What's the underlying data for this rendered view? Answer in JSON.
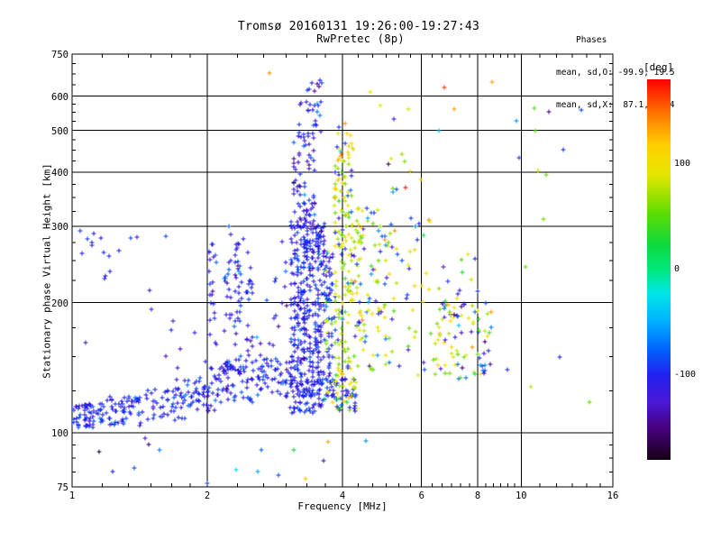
{
  "chart_data": {
    "type": "scatter",
    "title": "Tromsø 20160131 19:26:00-19:27:43",
    "subtitle": "RwPretec (8p)",
    "xlabel": "Frequency [MHz]",
    "ylabel": "Stationary phase Virtual Height [km]",
    "x_scale": "log",
    "x_range": [
      1,
      16
    ],
    "x_major_ticks": [
      1,
      2,
      4,
      6,
      8,
      10,
      16
    ],
    "x_tick_labels": [
      "1",
      "2",
      "4",
      "6",
      "8",
      "10",
      "16"
    ],
    "y_scale": "log",
    "y_range": [
      75,
      750
    ],
    "y_major_ticks": [
      75,
      100,
      200,
      300,
      400,
      500,
      600,
      750
    ],
    "y_tick_labels": [
      "75",
      "100",
      "200",
      "300",
      "400",
      "500",
      "600",
      "750"
    ],
    "grid_x": [
      2,
      4,
      6,
      8,
      10
    ],
    "grid_y": [
      100,
      200,
      300,
      400,
      500,
      600
    ],
    "grid_on": true,
    "legend_position": "right-colorbar",
    "annotation": {
      "line1": "Phases",
      "line2": "mean, sd,O: -99.9, 19.5",
      "line3": "mean, sd,X:  87.1, 22.4"
    },
    "colorbar": {
      "label": "[deg]",
      "range": [
        -180,
        180
      ],
      "ticks": [
        100,
        0,
        -100
      ],
      "tick_labels": [
        "100",
        "0",
        "-100"
      ],
      "stops": [
        [
          -180,
          "#160016"
        ],
        [
          -150,
          "#47007e"
        ],
        [
          -125,
          "#4a18d8"
        ],
        [
          -100,
          "#2121ee"
        ],
        [
          -75,
          "#0064ff"
        ],
        [
          -48,
          "#00b4ff"
        ],
        [
          -22,
          "#00e6e6"
        ],
        [
          0,
          "#00e87c"
        ],
        [
          25,
          "#0fd93a"
        ],
        [
          55,
          "#63dd00"
        ],
        [
          90,
          "#e6e600"
        ],
        [
          118,
          "#ffcf00"
        ],
        [
          148,
          "#ff7400"
        ],
        [
          180,
          "#ff0000"
        ]
      ]
    },
    "marker": "plus-cross",
    "marker_color_black": "#000000",
    "clusters": [
      {
        "f": [
          1.0,
          1.18
        ],
        "h": [
          103,
          117
        ],
        "n": 60,
        "pops": [
          [
            -100,
            12,
            1
          ]
        ]
      },
      {
        "f": [
          1.18,
          1.45
        ],
        "h": [
          104,
          121
        ],
        "n": 55,
        "pops": [
          [
            -100,
            13,
            1
          ]
        ]
      },
      {
        "f": [
          1.45,
          1.78
        ],
        "h": [
          107,
          127
        ],
        "n": 48,
        "pops": [
          [
            -102,
            14,
            1
          ]
        ]
      },
      {
        "f": [
          1.78,
          2.12
        ],
        "h": [
          112,
          136
        ],
        "n": 55,
        "pops": [
          [
            -100,
            15,
            1
          ]
        ]
      },
      {
        "f": [
          2.12,
          2.55
        ],
        "h": [
          117,
          143
        ],
        "n": 60,
        "pops": [
          [
            -101,
            16,
            1
          ]
        ]
      },
      {
        "f": [
          2.55,
          3.05
        ],
        "h": [
          121,
          149
        ],
        "n": 55,
        "pops": [
          [
            -100,
            16,
            1
          ]
        ]
      },
      {
        "f": [
          3.05,
          3.62
        ],
        "h": [
          111,
          133
        ],
        "n": 95,
        "pops": [
          [
            -102,
            14,
            1
          ]
        ]
      },
      {
        "f": [
          3.62,
          4.3
        ],
        "h": [
          112,
          136
        ],
        "n": 75,
        "pops": [
          [
            -100,
            16,
            0.62
          ],
          [
            88,
            25,
            0.38
          ]
        ]
      },
      {
        "f": [
          2.02,
          2.1
        ],
        "h": [
          140,
          275
        ],
        "n": 22,
        "pops": [
          [
            -106,
            18,
            1
          ]
        ],
        "bias": 1.3
      },
      {
        "f": [
          2.18,
          2.26
        ],
        "h": [
          140,
          250
        ],
        "n": 20,
        "pops": [
          [
            -106,
            18,
            1
          ]
        ],
        "bias": 1.3
      },
      {
        "f": [
          2.3,
          2.38
        ],
        "h": [
          142,
          285
        ],
        "n": 26,
        "pops": [
          [
            -105,
            18,
            1
          ]
        ],
        "bias": 1.3
      },
      {
        "f": [
          2.44,
          2.52
        ],
        "h": [
          145,
          270
        ],
        "n": 20,
        "pops": [
          [
            -106,
            18,
            1
          ]
        ],
        "bias": 1.3
      },
      {
        "f": [
          2.0,
          2.62
        ],
        "h": [
          140,
          300
        ],
        "n": 22,
        "pops": [
          [
            -108,
            20,
            1
          ]
        ],
        "bias": 1.2
      },
      {
        "f": [
          2.62,
          3.02
        ],
        "h": [
          150,
          330
        ],
        "n": 16,
        "pops": [
          [
            -108,
            20,
            1
          ]
        ],
        "bias": 1.3
      },
      {
        "f": [
          3.05,
          3.26
        ],
        "h": [
          134,
          315
        ],
        "n": 115,
        "pops": [
          [
            -103,
            16,
            1
          ]
        ],
        "cols": 4,
        "bias": 1.25
      },
      {
        "f": [
          3.26,
          3.46
        ],
        "h": [
          134,
          340
        ],
        "n": 130,
        "pops": [
          [
            -102,
            16,
            1
          ]
        ],
        "cols": 4,
        "bias": 1.25
      },
      {
        "f": [
          3.46,
          3.66
        ],
        "h": [
          133,
          305
        ],
        "n": 110,
        "pops": [
          [
            -103,
            17,
            1
          ]
        ],
        "cols": 4,
        "bias": 1.2
      },
      {
        "f": [
          3.66,
          3.82
        ],
        "h": [
          132,
          265
        ],
        "n": 60,
        "pops": [
          [
            -101,
            18,
            0.85
          ],
          [
            85,
            25,
            0.15
          ]
        ],
        "cols": 3,
        "bias": 1.2
      },
      {
        "f": [
          3.08,
          3.5
        ],
        "h": [
          310,
          490
        ],
        "n": 55,
        "pops": [
          [
            -106,
            20,
            1
          ]
        ],
        "cols": 5,
        "bias": 1.15
      },
      {
        "f": [
          3.2,
          3.58
        ],
        "h": [
          485,
          585
        ],
        "n": 22,
        "pops": [
          [
            -100,
            18,
            1
          ]
        ]
      },
      {
        "f": [
          3.28,
          3.62
        ],
        "h": [
          585,
          660
        ],
        "n": 8,
        "pops": [
          [
            -110,
            25,
            1
          ]
        ]
      },
      {
        "f": [
          3.82,
          4.02
        ],
        "h": [
          130,
          430
        ],
        "n": 80,
        "pops": [
          [
            86,
            22,
            0.8
          ],
          [
            -100,
            18,
            0.2
          ]
        ],
        "cols": 3,
        "bias": 1.3
      },
      {
        "f": [
          4.02,
          4.22
        ],
        "h": [
          138,
          470
        ],
        "n": 70,
        "pops": [
          [
            80,
            24,
            0.85
          ],
          [
            -95,
            20,
            0.15
          ]
        ],
        "cols": 3,
        "bias": 1.25
      },
      {
        "f": [
          4.22,
          4.48
        ],
        "h": [
          140,
          335
        ],
        "n": 50,
        "pops": [
          [
            85,
            24,
            0.8
          ],
          [
            -100,
            20,
            0.2
          ]
        ],
        "bias": 1.2
      },
      {
        "f": [
          3.85,
          4.3
        ],
        "h": [
          430,
          525
        ],
        "n": 12,
        "pops": [
          [
            95,
            30,
            0.75
          ],
          [
            -90,
            25,
            0.25
          ]
        ]
      },
      {
        "f": [
          4.48,
          5.05
        ],
        "h": [
          140,
          330
        ],
        "n": 55,
        "pops": [
          [
            85,
            24,
            0.68
          ],
          [
            -95,
            25,
            0.32
          ]
        ],
        "bias": 1.2
      },
      {
        "f": [
          5.05,
          6.3
        ],
        "h": [
          135,
          315
        ],
        "n": 45,
        "pops": [
          [
            85,
            26,
            0.66
          ],
          [
            -100,
            25,
            0.34
          ]
        ],
        "bias": 1.15
      },
      {
        "f": [
          4.5,
          6.1
        ],
        "h": [
          330,
          490
        ],
        "n": 10,
        "pops": [
          [
            90,
            35,
            0.6
          ],
          [
            -95,
            30,
            0.4
          ]
        ]
      },
      {
        "f": [
          6.35,
          8.6
        ],
        "h": [
          133,
          200
        ],
        "n": 88,
        "pops": [
          [
            85,
            30,
            0.55
          ],
          [
            -100,
            28,
            0.45
          ]
        ]
      },
      {
        "f": [
          6.3,
          8.2
        ],
        "h": [
          200,
          262
        ],
        "n": 12,
        "pops": [
          [
            80,
            35,
            0.5
          ],
          [
            -100,
            25,
            0.5
          ]
        ]
      },
      {
        "f": [
          1.0,
          1.32
        ],
        "h": [
          253,
          300
        ],
        "n": 7,
        "pops": [
          [
            -100,
            15,
            1
          ]
        ]
      },
      {
        "f": [
          1.0,
          2.0
        ],
        "h": [
          133,
          305
        ],
        "n": 20,
        "pops": [
          [
            -103,
            18,
            1
          ]
        ],
        "bias": 1.2
      },
      {
        "f": [
          1.0,
          1.62
        ],
        "h": [
          80,
          98
        ],
        "n": 6,
        "pops": [
          [
            -105,
            30,
            1
          ]
        ]
      },
      {
        "f": [
          1.62,
          4.6
        ],
        "h": [
          77,
          99
        ],
        "n": 9,
        "pops": [
          [
            -40,
            90,
            1
          ]
        ]
      }
    ],
    "extra_points": [
      [
        2.75,
        678,
        140
      ],
      [
        8.6,
        645,
        132
      ],
      [
        9.75,
        525,
        -60
      ],
      [
        10.7,
        562,
        48
      ],
      [
        11.5,
        552,
        -148
      ],
      [
        10.75,
        500,
        52
      ],
      [
        12.4,
        452,
        -95
      ],
      [
        9.9,
        433,
        -92
      ],
      [
        10.9,
        403,
        95
      ],
      [
        11.35,
        394,
        55
      ],
      [
        11.2,
        312,
        58
      ],
      [
        10.2,
        242,
        52
      ],
      [
        7.9,
        252,
        -100
      ],
      [
        13.6,
        558,
        -88
      ],
      [
        4.62,
        612,
        100
      ],
      [
        6.75,
        628,
        165
      ],
      [
        6.55,
        498,
        -45
      ],
      [
        5.6,
        560,
        85
      ],
      [
        7.1,
        560,
        135
      ],
      [
        5.2,
        530,
        -105
      ],
      [
        4.85,
        570,
        90
      ],
      [
        9.3,
        140,
        -95
      ],
      [
        10.5,
        128,
        80
      ],
      [
        12.2,
        150,
        -100
      ],
      [
        2.0,
        76.5,
        -90
      ],
      [
        14.2,
        118,
        55
      ]
    ]
  }
}
